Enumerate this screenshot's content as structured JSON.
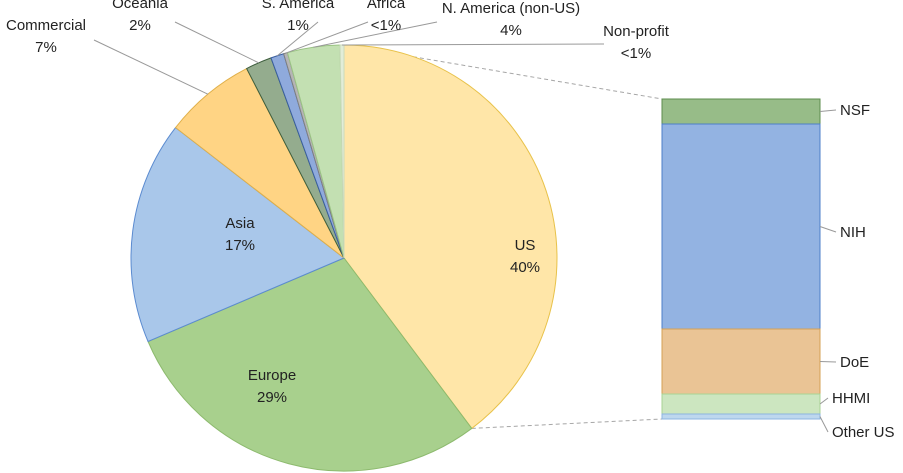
{
  "chart_data": [
    {
      "type": "pie",
      "title": "",
      "slices": [
        {
          "name": "US",
          "label": "40%",
          "value": 40,
          "color": "#FFE6A8",
          "stroke": "#E8C24A"
        },
        {
          "name": "Europe",
          "label": "29%",
          "value": 29,
          "color": "#A8D08D",
          "stroke": "#8DBA6E"
        },
        {
          "name": "Asia",
          "label": "17%",
          "value": 17,
          "color": "#A9C7EA",
          "stroke": "#5B8BD0"
        },
        {
          "name": "Commercial",
          "label": "7%",
          "value": 7,
          "color": "#FFD484",
          "stroke": "#E0B04A"
        },
        {
          "name": "Oceania",
          "label": "2%",
          "value": 2,
          "color": "#94AC8E",
          "stroke": "#3E5E3E"
        },
        {
          "name": "S. America",
          "label": "1%",
          "value": 1,
          "color": "#8FAADC",
          "stroke": "#3A5FA0"
        },
        {
          "name": "Africa",
          "label": "<1%",
          "value": 0.3,
          "color": "#B5B5B5",
          "stroke": "#808080"
        },
        {
          "name": "N. America (non-US)",
          "label": "4%",
          "value": 4,
          "color": "#C3E0B2",
          "stroke": "#9BC484"
        },
        {
          "name": "Non-profit",
          "label": "<1%",
          "value": 0.3,
          "color": "#E2EDD8",
          "stroke": "#C9DABB"
        }
      ]
    },
    {
      "type": "bar",
      "stacked": true,
      "series": [
        {
          "name": "NSF",
          "value": 2.5,
          "color": "#97BC88",
          "stroke": "#5E8C4E"
        },
        {
          "name": "NIH",
          "value": 20.5,
          "color": "#93B3E2",
          "stroke": "#4E7FC8"
        },
        {
          "name": "DoE",
          "value": 6.5,
          "color": "#EAC495",
          "stroke": "#D4A055"
        },
        {
          "name": "HHMI",
          "value": 2,
          "color": "#CCE6C0",
          "stroke": "#A9D394"
        },
        {
          "name": "Other US",
          "value": 0.5,
          "color": "#BDD7EE",
          "stroke": "#8DB4E0"
        }
      ]
    }
  ]
}
